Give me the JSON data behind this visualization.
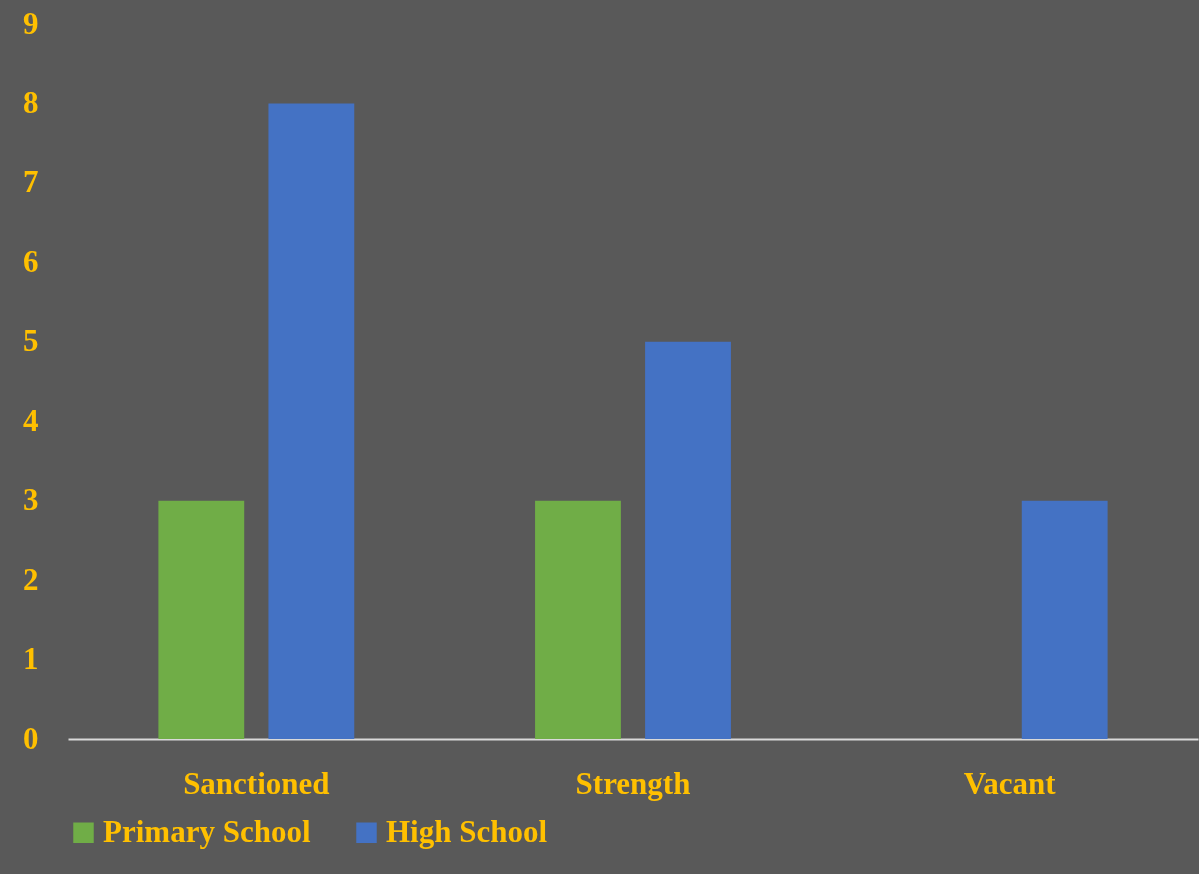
{
  "chart_data": {
    "type": "bar",
    "categories": [
      "Sanctioned",
      "Strength",
      "Vacant"
    ],
    "series": [
      {
        "name": "Primary School",
        "color": "#70ad47",
        "values": [
          3,
          3,
          0
        ]
      },
      {
        "name": "High School",
        "color": "#4472c4",
        "values": [
          8,
          5,
          3
        ]
      }
    ],
    "ylim": [
      0,
      9
    ],
    "yticks": [
      0,
      1,
      2,
      3,
      4,
      5,
      6,
      7,
      8,
      9
    ],
    "grid": false,
    "legend": "bottom"
  }
}
